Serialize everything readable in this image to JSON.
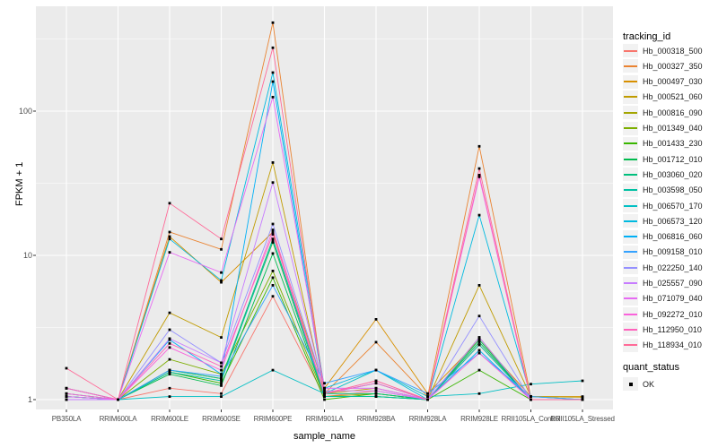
{
  "figure": {
    "background": "#FFFFFF",
    "panel_background": "#EBEBEB",
    "gridline_color": "#FFFFFF",
    "axis_text_color": "#4D4D4D",
    "tick_mark_color": "#333333",
    "point_color": "#000000"
  },
  "chart_data": {
    "type": "line",
    "title": "",
    "xlabel": "sample_name",
    "ylabel": "FPKM + 1",
    "y_scale": "log10",
    "y_ticks": [
      1,
      10,
      100
    ],
    "y_minor_gridlines": [
      3.162,
      31.62,
      316.2
    ],
    "y_range_approx": [
      0.85,
      530
    ],
    "grid": true,
    "point_marker": "filled-black-square",
    "categories": [
      "PB350LA",
      "RRIM600LA",
      "RRIM600LE",
      "RRIM600SE",
      "RRIM600PE",
      "RRIM901LA",
      "RRIM928BA",
      "RRIM928LA",
      "RRIM928LE",
      "RRII105LA_Control",
      "RRII105LA_Stressed"
    ],
    "series": [
      {
        "name": "Hb_000318_500",
        "color": "#F8766D",
        "values": [
          1.2,
          1.0,
          1.2,
          1.1,
          5.2,
          1.05,
          1.15,
          1.0,
          2.4,
          1.0,
          1.0
        ]
      },
      {
        "name": "Hb_000327_350",
        "color": "#EA8331",
        "values": [
          1.0,
          1.0,
          14.5,
          11.0,
          410,
          1.1,
          2.5,
          1.05,
          57.0,
          1.05,
          1.0
        ]
      },
      {
        "name": "Hb_000497_030",
        "color": "#D89000",
        "values": [
          1.05,
          1.0,
          13.5,
          6.5,
          14.5,
          1.2,
          3.6,
          1.1,
          2.6,
          1.05,
          1.05
        ]
      },
      {
        "name": "Hb_000521_060",
        "color": "#C09B00",
        "values": [
          1.1,
          1.0,
          4.0,
          2.7,
          44.0,
          1.1,
          1.2,
          1.0,
          6.2,
          1.05,
          1.04
        ]
      },
      {
        "name": "Hb_000816_090",
        "color": "#A3A500",
        "values": [
          1.0,
          1.0,
          1.6,
          1.4,
          12.3,
          1.05,
          1.1,
          1.0,
          2.6,
          1.0,
          1.0
        ]
      },
      {
        "name": "Hb_001349_040",
        "color": "#7CAE00",
        "values": [
          1.05,
          1.0,
          1.9,
          1.5,
          7.8,
          1.05,
          1.05,
          1.0,
          2.7,
          1.0,
          1.0
        ]
      },
      {
        "name": "Hb_001433_230",
        "color": "#39B600",
        "values": [
          1.0,
          1.0,
          1.55,
          1.3,
          7.0,
          1.0,
          1.1,
          1.0,
          1.6,
          1.0,
          1.0
        ]
      },
      {
        "name": "Hb_001712_010",
        "color": "#00BB4E",
        "values": [
          1.0,
          1.0,
          1.5,
          1.25,
          10.3,
          1.05,
          1.05,
          1.0,
          2.5,
          1.0,
          1.0
        ]
      },
      {
        "name": "Hb_003060_020",
        "color": "#00BF7D",
        "values": [
          1.05,
          1.0,
          1.6,
          1.4,
          13.0,
          1.1,
          1.1,
          1.0,
          2.6,
          1.0,
          1.0
        ]
      },
      {
        "name": "Hb_003598_050",
        "color": "#00C1A3",
        "values": [
          1.0,
          1.0,
          1.55,
          1.35,
          12.5,
          1.05,
          1.05,
          1.0,
          2.4,
          1.0,
          1.0
        ]
      },
      {
        "name": "Hb_006570_170",
        "color": "#00BFC4",
        "values": [
          1.1,
          1.0,
          1.05,
          1.05,
          1.6,
          1.1,
          1.6,
          1.05,
          1.1,
          1.28,
          1.35
        ]
      },
      {
        "name": "Hb_006573_120",
        "color": "#00BAE0",
        "values": [
          1.0,
          1.0,
          13.0,
          6.7,
          185,
          1.2,
          1.6,
          1.0,
          19.0,
          1.05,
          1.0
        ]
      },
      {
        "name": "Hb_006816_060",
        "color": "#00B0F6",
        "values": [
          1.05,
          1.0,
          2.6,
          1.5,
          160,
          1.1,
          1.3,
          1.0,
          2.2,
          1.0,
          1.0
        ]
      },
      {
        "name": "Hb_009158_010",
        "color": "#35A2FF",
        "values": [
          1.2,
          1.0,
          1.6,
          1.45,
          6.2,
          1.3,
          1.6,
          1.1,
          2.1,
          1.05,
          1.0
        ]
      },
      {
        "name": "Hb_022250_140",
        "color": "#9590FF",
        "values": [
          1.0,
          1.0,
          3.05,
          1.8,
          16.5,
          1.2,
          1.2,
          1.0,
          3.8,
          1.0,
          1.0
        ]
      },
      {
        "name": "Hb_025557_090",
        "color": "#C77CFF",
        "values": [
          1.0,
          1.0,
          2.65,
          1.8,
          32.0,
          1.15,
          1.15,
          1.0,
          2.7,
          1.0,
          1.0
        ]
      },
      {
        "name": "Hb_071079_040",
        "color": "#E76BF3",
        "values": [
          1.05,
          1.0,
          10.5,
          7.6,
          125,
          1.2,
          1.2,
          1.0,
          35.0,
          1.0,
          1.0
        ]
      },
      {
        "name": "Hb_092272_010",
        "color": "#FA62DB",
        "values": [
          1.1,
          1.0,
          2.3,
          1.6,
          15.0,
          1.1,
          1.35,
          1.0,
          2.1,
          1.0,
          1.0
        ]
      },
      {
        "name": "Hb_112950_010",
        "color": "#FF62BC",
        "values": [
          1.2,
          1.0,
          2.45,
          1.7,
          14.0,
          1.1,
          1.3,
          1.0,
          36.0,
          1.0,
          1.0
        ]
      },
      {
        "name": "Hb_118934_010",
        "color": "#FF6A98",
        "values": [
          1.65,
          1.0,
          23.0,
          13.0,
          275,
          1.1,
          1.35,
          1.0,
          40.0,
          1.0,
          1.0
        ]
      }
    ],
    "legend": {
      "position": "right",
      "series_legend_title": "tracking_id",
      "quant_legend_title": "quant_status",
      "quant_items": [
        {
          "label": "OK",
          "marker": "black-square"
        }
      ]
    }
  }
}
